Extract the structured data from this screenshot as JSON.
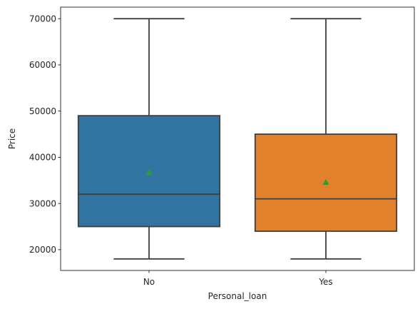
{
  "chart_data": {
    "type": "box",
    "title": "",
    "xlabel": "Personal_loan",
    "ylabel": "Price",
    "ylim": [
      15500,
      72500
    ],
    "yticks": [
      20000,
      30000,
      40000,
      50000,
      60000,
      70000
    ],
    "yticklabels": [
      "20000",
      "30000",
      "40000",
      "50000",
      "60000",
      "70000"
    ],
    "categories": [
      "No",
      "Yes"
    ],
    "boxes": [
      {
        "category": "No",
        "color": "#3274a1",
        "whisker_low": 18000,
        "q1": 25000,
        "median": 32000,
        "q3": 49000,
        "whisker_high": 70000,
        "mean": 36700
      },
      {
        "category": "Yes",
        "color": "#e1812c",
        "whisker_low": 18000,
        "q1": 24000,
        "median": 31000,
        "q3": 45000,
        "whisker_high": 70000,
        "mean": 34600
      }
    ],
    "mean_marker_color": "#2ca02c",
    "line_color": "#3f3f3f",
    "grid": false,
    "legend": "none"
  }
}
